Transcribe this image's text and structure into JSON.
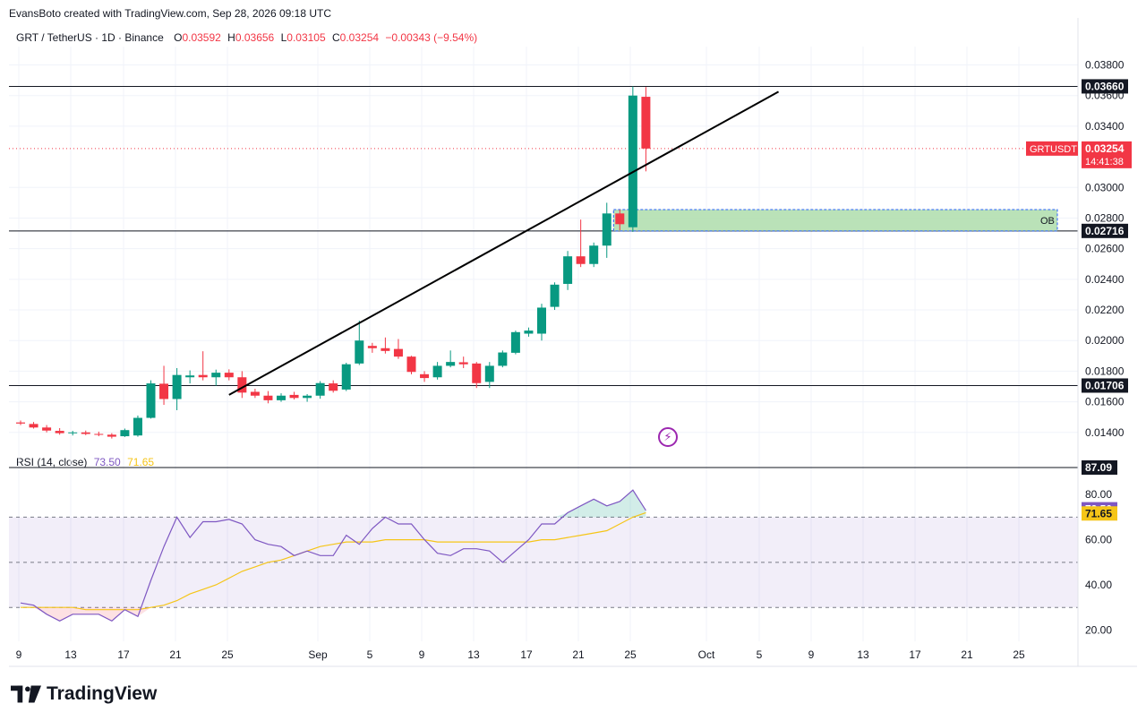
{
  "header": {
    "created": "EvansBoto created with TradingView.com, Sep 28, 2026 09:18 UTC"
  },
  "legend": {
    "symbol": "GRT / TetherUS · 1D · Binance",
    "open_label": "O",
    "open": "0.03592",
    "high_label": "H",
    "high": "0.03656",
    "low_label": "L",
    "low": "0.03105",
    "close_label": "C",
    "close": "0.03254",
    "change": "−0.00343 (−9.54%)"
  },
  "rsi_legend": {
    "title": "RSI (14, close)",
    "rsi": "73.50",
    "ma": "71.65"
  },
  "footer": {
    "brand": "TradingView"
  },
  "colors": {
    "up": "#089981",
    "down": "#f23645",
    "rsi": "#7e57c2",
    "rsi_ma": "#f5c518",
    "ob_zone": "#b2dfb0"
  },
  "icons": {
    "event": "lightning-icon",
    "logo": "tradingview-logo-icon"
  },
  "chart_data": [
    {
      "type": "candlestick",
      "price_axis": {
        "ticks": [
          "0.03800",
          "0.03600",
          "0.03400",
          "0.03000",
          "0.02800",
          "0.02600",
          "0.02400",
          "0.02200",
          "0.02000",
          "0.01800",
          "0.01600",
          "0.01400"
        ],
        "ylim": [
          0.0127,
          0.0392
        ]
      },
      "time_axis": {
        "ticks": [
          "9",
          "13",
          "17",
          "21",
          "25",
          "Sep",
          "5",
          "9",
          "13",
          "17",
          "21",
          "25",
          "Oct",
          "5",
          "9",
          "13",
          "17",
          "21",
          "25"
        ]
      },
      "levels": [
        {
          "label": "0.03660",
          "value": 0.0366
        },
        {
          "label": "0.02716",
          "value": 0.02716
        },
        {
          "label": "0.01706",
          "value": 0.01706
        }
      ],
      "current_price": {
        "symbol": "GRTUSDT",
        "price": "0.03254",
        "countdown": "14:41:38",
        "value": 0.03254
      },
      "ob_zone": {
        "label": "OB",
        "top": 0.02855,
        "bottom": 0.02716
      },
      "trendline": {
        "from": {
          "x": 16,
          "y": 0.01645
        },
        "to": {
          "x": 41,
          "y": 0.03625
        }
      },
      "candles": [
        {
          "o": 0.01465,
          "h": 0.01478,
          "l": 0.01448,
          "c": 0.01458
        },
        {
          "o": 0.01455,
          "h": 0.01468,
          "l": 0.01425,
          "c": 0.01432
        },
        {
          "o": 0.01432,
          "h": 0.01448,
          "l": 0.014,
          "c": 0.01412
        },
        {
          "o": 0.0141,
          "h": 0.01428,
          "l": 0.01385,
          "c": 0.01395
        },
        {
          "o": 0.01395,
          "h": 0.0141,
          "l": 0.0138,
          "c": 0.014
        },
        {
          "o": 0.014,
          "h": 0.01412,
          "l": 0.01382,
          "c": 0.0139
        },
        {
          "o": 0.0139,
          "h": 0.01405,
          "l": 0.01375,
          "c": 0.01385
        },
        {
          "o": 0.01385,
          "h": 0.01395,
          "l": 0.0136,
          "c": 0.01372
        },
        {
          "o": 0.01375,
          "h": 0.01425,
          "l": 0.0137,
          "c": 0.01415
        },
        {
          "o": 0.0138,
          "h": 0.0151,
          "l": 0.01372,
          "c": 0.01495
        },
        {
          "o": 0.01495,
          "h": 0.0174,
          "l": 0.0149,
          "c": 0.0172
        },
        {
          "o": 0.01718,
          "h": 0.01835,
          "l": 0.0158,
          "c": 0.01618
        },
        {
          "o": 0.01618,
          "h": 0.0182,
          "l": 0.01545,
          "c": 0.01775
        },
        {
          "o": 0.0176,
          "h": 0.01805,
          "l": 0.0172,
          "c": 0.01772
        },
        {
          "o": 0.01775,
          "h": 0.0193,
          "l": 0.0174,
          "c": 0.0176
        },
        {
          "o": 0.0176,
          "h": 0.0181,
          "l": 0.01705,
          "c": 0.0179
        },
        {
          "o": 0.0179,
          "h": 0.01812,
          "l": 0.0174,
          "c": 0.0176
        },
        {
          "o": 0.0176,
          "h": 0.018,
          "l": 0.01625,
          "c": 0.0166
        },
        {
          "o": 0.01665,
          "h": 0.01685,
          "l": 0.01625,
          "c": 0.0164
        },
        {
          "o": 0.0164,
          "h": 0.0167,
          "l": 0.0159,
          "c": 0.0161
        },
        {
          "o": 0.0161,
          "h": 0.01655,
          "l": 0.016,
          "c": 0.0164
        },
        {
          "o": 0.01645,
          "h": 0.01665,
          "l": 0.01615,
          "c": 0.01625
        },
        {
          "o": 0.01625,
          "h": 0.0165,
          "l": 0.016,
          "c": 0.0164
        },
        {
          "o": 0.0164,
          "h": 0.01735,
          "l": 0.0162,
          "c": 0.01722
        },
        {
          "o": 0.0172,
          "h": 0.0174,
          "l": 0.0166,
          "c": 0.01672
        },
        {
          "o": 0.0168,
          "h": 0.01855,
          "l": 0.0167,
          "c": 0.01845
        },
        {
          "o": 0.0185,
          "h": 0.0213,
          "l": 0.0184,
          "c": 0.02
        },
        {
          "o": 0.01965,
          "h": 0.01985,
          "l": 0.0192,
          "c": 0.0195
        },
        {
          "o": 0.0195,
          "h": 0.0202,
          "l": 0.01915,
          "c": 0.01932
        },
        {
          "o": 0.01945,
          "h": 0.0201,
          "l": 0.0188,
          "c": 0.01895
        },
        {
          "o": 0.01895,
          "h": 0.019,
          "l": 0.0178,
          "c": 0.01795
        },
        {
          "o": 0.0178,
          "h": 0.018,
          "l": 0.0173,
          "c": 0.01755
        },
        {
          "o": 0.0176,
          "h": 0.0186,
          "l": 0.01745,
          "c": 0.01835
        },
        {
          "o": 0.01835,
          "h": 0.01935,
          "l": 0.01825,
          "c": 0.0186
        },
        {
          "o": 0.01858,
          "h": 0.01895,
          "l": 0.0182,
          "c": 0.01845
        },
        {
          "o": 0.0185,
          "h": 0.0186,
          "l": 0.0169,
          "c": 0.01722
        },
        {
          "o": 0.0173,
          "h": 0.0186,
          "l": 0.0169,
          "c": 0.01835
        },
        {
          "o": 0.01835,
          "h": 0.01935,
          "l": 0.01825,
          "c": 0.01922
        },
        {
          "o": 0.0192,
          "h": 0.02065,
          "l": 0.0191,
          "c": 0.02055
        },
        {
          "o": 0.02045,
          "h": 0.02085,
          "l": 0.02025,
          "c": 0.02065
        },
        {
          "o": 0.02045,
          "h": 0.0224,
          "l": 0.02,
          "c": 0.02215
        },
        {
          "o": 0.0222,
          "h": 0.0238,
          "l": 0.022,
          "c": 0.02365
        },
        {
          "o": 0.0237,
          "h": 0.02585,
          "l": 0.0233,
          "c": 0.0255
        },
        {
          "o": 0.0255,
          "h": 0.0279,
          "l": 0.0248,
          "c": 0.025
        },
        {
          "o": 0.025,
          "h": 0.0264,
          "l": 0.0248,
          "c": 0.0262
        },
        {
          "o": 0.0262,
          "h": 0.029,
          "l": 0.0254,
          "c": 0.0283
        },
        {
          "o": 0.0283,
          "h": 0.02855,
          "l": 0.0272,
          "c": 0.0276
        },
        {
          "o": 0.0274,
          "h": 0.0366,
          "l": 0.0271,
          "c": 0.036
        },
        {
          "o": 0.03592,
          "h": 0.03656,
          "l": 0.03105,
          "c": 0.03254
        }
      ]
    },
    {
      "type": "line",
      "title": "RSI (14, close)",
      "value_axis": {
        "ticks": [
          "80.00",
          "60.00",
          "40.00",
          "20.00"
        ],
        "ylim": [
          15,
          92
        ]
      },
      "levels": [
        {
          "label": "87.09",
          "value": 87.09
        },
        {
          "label": "73.50",
          "value": 73.5,
          "color": "#7e57c2"
        },
        {
          "label": "71.65",
          "value": 71.65,
          "color": "#f5c518"
        }
      ],
      "bands": {
        "upper": 70,
        "middle": 50,
        "lower": 30
      },
      "series": [
        {
          "values": [
            32,
            31,
            27,
            24,
            27,
            27,
            27,
            24,
            29,
            26,
            42,
            57,
            70,
            61,
            68,
            68,
            69,
            67,
            60,
            58,
            57,
            53,
            55,
            53,
            53,
            62,
            58,
            65,
            70,
            67,
            67,
            60,
            54,
            53,
            56,
            56,
            55,
            50,
            55,
            60,
            67,
            67,
            72,
            75,
            78,
            75,
            77,
            82,
            73
          ]
        },
        {
          "values": [
            30,
            30,
            30,
            30,
            30,
            29,
            29,
            29,
            29,
            29,
            30,
            31,
            33,
            36,
            38,
            40,
            43,
            46,
            48,
            50,
            51,
            53,
            55,
            57,
            58,
            59,
            59,
            59,
            60,
            60,
            60,
            60,
            59,
            59,
            59,
            59,
            59,
            59,
            59,
            59,
            60,
            60,
            61,
            62,
            63,
            64,
            67,
            70,
            72
          ]
        }
      ]
    }
  ]
}
